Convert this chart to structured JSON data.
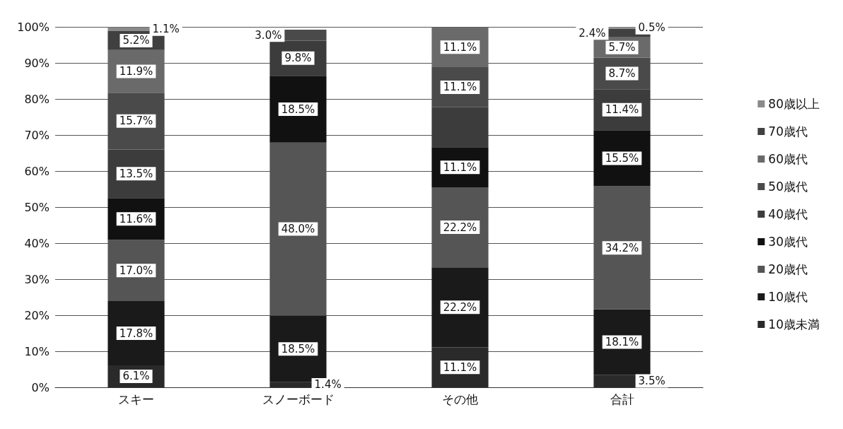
{
  "chart_data": {
    "type": "bar",
    "stacked": true,
    "categories": [
      "スキー",
      "スノーボード",
      "その他",
      "合計"
    ],
    "ylim": [
      0,
      100
    ],
    "yticks": [
      {
        "value": 0,
        "label": "0%"
      },
      {
        "value": 10,
        "label": "10%"
      },
      {
        "value": 20,
        "label": "20%"
      },
      {
        "value": 30,
        "label": "30%"
      },
      {
        "value": 40,
        "label": "40%"
      },
      {
        "value": 50,
        "label": "50%"
      },
      {
        "value": 60,
        "label": "60%"
      },
      {
        "value": 70,
        "label": "70%"
      },
      {
        "value": 80,
        "label": "80%"
      },
      {
        "value": 90,
        "label": "90%"
      },
      {
        "value": 100,
        "label": "100%"
      }
    ],
    "grid": "y",
    "legend": "right",
    "series": [
      {
        "name": "10歳未満",
        "color": "#2a2a2a",
        "values": [
          6.1,
          1.4,
          11.1,
          3.5
        ],
        "value_labels": [
          "6.1%",
          "1.4%",
          "11.1%",
          "3.5%"
        ]
      },
      {
        "name": "10歳代",
        "color": "#1a1a1a",
        "values": [
          17.8,
          18.5,
          22.2,
          18.1
        ],
        "value_labels": [
          "17.8%",
          "18.5%",
          "22.2%",
          "18.1%"
        ]
      },
      {
        "name": "20歳代",
        "color": "#555555",
        "values": [
          17.0,
          48.0,
          22.2,
          34.2
        ],
        "value_labels": [
          "17.0%",
          "48.0%",
          "22.2%",
          "34.2%"
        ]
      },
      {
        "name": "30歳代",
        "color": "#111111",
        "values": [
          11.6,
          18.5,
          11.1,
          15.5
        ],
        "value_labels": [
          "11.6%",
          "18.5%",
          "11.1%",
          "15.5%"
        ]
      },
      {
        "name": "40歳代",
        "color": "#3c3c3c",
        "values": [
          13.5,
          9.8,
          11.1,
          11.4
        ],
        "value_labels": [
          "13.5%",
          "9.8%",
          null,
          "11.4%"
        ]
      },
      {
        "name": "50歳代",
        "color": "#4a4a4a",
        "values": [
          15.7,
          3.0,
          11.1,
          8.7
        ],
        "value_labels": [
          "15.7%",
          "3.0%",
          "11.1%",
          "8.7%"
        ]
      },
      {
        "name": "60歳代",
        "color": "#6a6a6a",
        "values": [
          11.9,
          0,
          11.1,
          5.7
        ],
        "value_labels": [
          "11.9%",
          null,
          "11.1%",
          "5.7%"
        ]
      },
      {
        "name": "70歳代",
        "color": "#404040",
        "values": [
          5.2,
          0,
          0,
          2.4
        ],
        "value_labels": [
          "5.2%",
          null,
          null,
          "2.4%"
        ]
      },
      {
        "name": "80歳以上",
        "color": "#8a8a8a",
        "values": [
          1.1,
          0,
          0,
          0.5
        ],
        "value_labels": [
          "1.1%",
          null,
          null,
          "0.5%"
        ]
      }
    ]
  }
}
